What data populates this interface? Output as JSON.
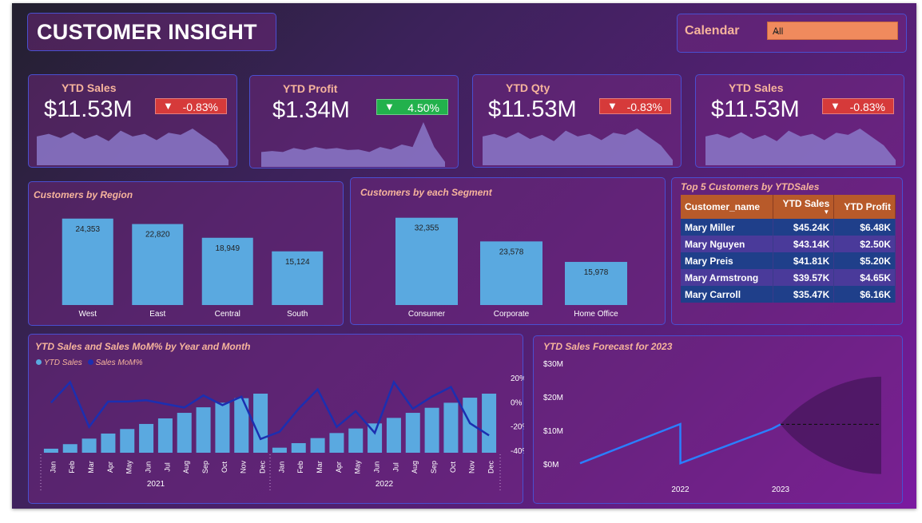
{
  "header": {
    "title": "CUSTOMER INSIGHT"
  },
  "filter": {
    "label": "Calendar",
    "selected": "All",
    "chevron_icon": "chevron-down-icon"
  },
  "kpis": [
    {
      "title": "YTD Sales",
      "value": "$11.53M",
      "change": "-0.83%",
      "direction": "down",
      "color": "#d63a3a",
      "spark": [
        55,
        60,
        52,
        63,
        50,
        58,
        46,
        66,
        55,
        60,
        48,
        62,
        58,
        70,
        54,
        38,
        10
      ]
    },
    {
      "title": "YTD Profit",
      "value": "$1.34M",
      "change": "4.50%",
      "direction": "down",
      "color": "#22b14c",
      "spark": [
        30,
        32,
        30,
        38,
        34,
        40,
        36,
        38,
        34,
        35,
        30,
        40,
        35,
        45,
        40,
        90,
        40,
        10
      ]
    },
    {
      "title": "YTD Qty",
      "value": "$11.53M",
      "change": "-0.83%",
      "direction": "down",
      "color": "#d63a3a",
      "spark": [
        55,
        60,
        52,
        63,
        50,
        58,
        46,
        66,
        55,
        60,
        48,
        62,
        58,
        70,
        54,
        38,
        10
      ]
    },
    {
      "title": "YTD Sales",
      "value": "$11.53M",
      "change": "-0.83%",
      "direction": "down",
      "color": "#d63a3a",
      "spark": [
        55,
        60,
        52,
        63,
        50,
        58,
        46,
        66,
        55,
        60,
        48,
        62,
        58,
        70,
        54,
        38,
        10
      ]
    }
  ],
  "chart_data": [
    {
      "type": "bar",
      "title": "Customers by Region",
      "categories": [
        "West",
        "East",
        "Central",
        "South"
      ],
      "values": [
        24353,
        22820,
        18949,
        15124
      ],
      "labels": [
        "24,353",
        "22,820",
        "18,949",
        "15,124"
      ],
      "ylim": [
        0,
        27000
      ]
    },
    {
      "type": "bar",
      "title": "Customers by each Segment",
      "categories": [
        "Consumer",
        "Corporate",
        "Home Office"
      ],
      "values": [
        32355,
        23578,
        15978
      ],
      "labels": [
        "32,355",
        "23,578",
        "15,978"
      ],
      "ylim": [
        0,
        37000
      ]
    },
    {
      "type": "table",
      "title": "Top 5 Customers by YTDSales",
      "columns": [
        "Customer_name",
        "YTD Sales",
        "YTD Profit"
      ],
      "rows": [
        [
          "Mary Miller",
          "$45.24K",
          "$6.48K"
        ],
        [
          "Mary Nguyen",
          "$43.14K",
          "$2.50K"
        ],
        [
          "Mary Preis",
          "$41.81K",
          "$5.20K"
        ],
        [
          "Mary Armstrong",
          "$39.57K",
          "$4.65K"
        ],
        [
          "Mary Carroll",
          "$35.47K",
          "$6.16K"
        ]
      ]
    },
    {
      "type": "bar",
      "title": "YTD Sales and Sales MoM% by Year and Month",
      "legend": [
        "YTD Sales",
        "Sales MoM%"
      ],
      "months": [
        "Jan",
        "Feb",
        "Mar",
        "Apr",
        "May",
        "Jun",
        "Jul",
        "Aug",
        "Sep",
        "Oct",
        "Nov",
        "Dec"
      ],
      "years": [
        "2021",
        "2022"
      ],
      "bars": [
        0.4,
        0.85,
        1.4,
        1.9,
        2.35,
        2.85,
        3.4,
        3.95,
        4.5,
        4.95,
        5.4,
        5.85,
        0.5,
        0.95,
        1.45,
        1.95,
        2.4,
        2.9,
        3.45,
        3.95,
        4.45,
        4.95,
        5.45,
        5.85
      ],
      "line": [
        0,
        17,
        -20,
        1,
        1,
        2,
        -1,
        -4,
        6,
        -2,
        5,
        -30,
        -24,
        -5,
        11,
        -20,
        -7,
        -25,
        17,
        -5,
        5,
        13,
        -17,
        -27
      ],
      "right_ticks": [
        "20%",
        "0%",
        "-20%",
        "-40%"
      ],
      "right_ylim": [
        -40,
        20
      ]
    },
    {
      "type": "line",
      "title": "YTD Sales Forecast for 2023",
      "y_ticks": [
        "$30M",
        "$20M",
        "$10M",
        "$0M"
      ],
      "x_ticks": [
        "2022",
        "2023"
      ],
      "ylim": [
        0,
        30
      ],
      "series": [
        {
          "points": [
            [
              0,
              0.2
            ],
            [
              12,
              11.9
            ],
            [
              12.01,
              0.2
            ],
            [
              23,
              10.5
            ],
            [
              24,
              11.8
            ]
          ]
        }
      ],
      "forecast": {
        "center": 11.8,
        "upper": 26,
        "lower": -3
      }
    }
  ]
}
